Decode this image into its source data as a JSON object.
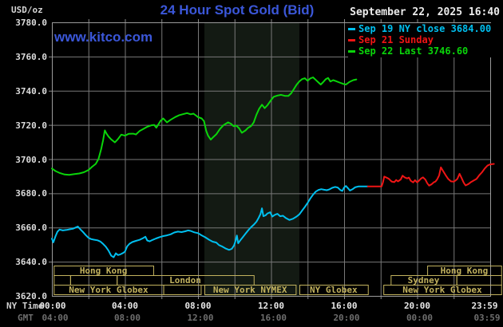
{
  "header": {
    "units_label": "USD/oz",
    "title": "24 Hour Spot Gold (Bid)",
    "datetime": "September 22, 2025 16:40",
    "watermark": "www.kitco.com"
  },
  "legend": {
    "items": [
      {
        "label": "Sep 19 NY close 3684.00",
        "color": "#00bfef"
      },
      {
        "label": "Sep 21 Sunday",
        "color": "#ef1515"
      },
      {
        "label": "Sep 22 Last 3746.60",
        "color": "#0ad50a"
      }
    ]
  },
  "axes": {
    "ny_row_label": "NY Time",
    "gmt_row_label": "GMT",
    "x_hours": [
      0,
      4,
      8,
      12,
      16,
      20,
      24
    ],
    "x_ny_labels": [
      "00:00",
      "04:00",
      "08:00",
      "12:00",
      "16:00",
      "20:00",
      "23:59"
    ],
    "x_gmt_labels": [
      "04:00",
      "08:00",
      "12:00",
      "16:00",
      "20:00",
      "00:00",
      "03:59"
    ],
    "y_tick_labels": [
      "3780.0",
      "3760.0",
      "3740.0",
      "3720.0",
      "3700.0",
      "3680.0",
      "3660.0",
      "3640.0",
      "3620.0"
    ],
    "y_tick_values": [
      3780,
      3760,
      3740,
      3720,
      3700,
      3680,
      3660,
      3640,
      3620
    ]
  },
  "colors": {
    "background": "#000000",
    "grid": "#787878",
    "border": "#9b9b9b",
    "tick": "#8a8a8a",
    "shade": "#131a13",
    "session": "#c2b25e",
    "title_blue": "#3b57d9"
  },
  "sessions": {
    "rows": [
      {
        "boxes": [
          {
            "label": "Hong Kong",
            "start": 0.1,
            "end": 5.55
          },
          {
            "label": "Hong Kong",
            "start": 20.55,
            "end": 24.6
          }
        ]
      },
      {
        "boxes": [
          {
            "label": "",
            "start": 0.1,
            "end": 1.0
          },
          {
            "label": "",
            "start": 1.0,
            "end": 3.55
          },
          {
            "label": "London",
            "start": 3.55,
            "end": 11.05
          },
          {
            "label": "Sydney",
            "start": 18.55,
            "end": 22.15
          },
          {
            "label": "",
            "start": 22.15,
            "end": 24.6
          }
        ]
      },
      {
        "boxes": [
          {
            "label": "New York Globex",
            "start": 0.1,
            "end": 6.1
          },
          {
            "label": "",
            "start": 6.1,
            "end": 8.15
          },
          {
            "label": "New York NYMEX",
            "start": 8.35,
            "end": 13.35
          },
          {
            "label": "NY Globex",
            "start": 13.55,
            "end": 17.3
          },
          {
            "label": "New York Globex",
            "start": 18.15,
            "end": 24.6
          }
        ]
      }
    ]
  },
  "chart_data": {
    "type": "line",
    "title": "24 Hour Spot Gold (Bid)",
    "xlabel": "NY Time (hours)",
    "ylabel": "USD/oz",
    "x_range_hours": [
      0,
      24
    ],
    "ylim": [
      3620,
      3780
    ],
    "y_tick_step": 20,
    "grid": true,
    "legend_position": "top-right",
    "shaded_band_hours": [
      8.35,
      13.55
    ],
    "series": [
      {
        "name": "Sep 19 NY close 3684.00",
        "color": "#00bfef",
        "points": [
          [
            0,
            3653.5
          ],
          [
            0.08,
            3651.3
          ],
          [
            0.2,
            3655
          ],
          [
            0.3,
            3657.5
          ],
          [
            0.42,
            3658.8
          ],
          [
            0.6,
            3658.3
          ],
          [
            0.8,
            3658.6
          ],
          [
            1,
            3659
          ],
          [
            1.15,
            3659.3
          ],
          [
            1.3,
            3660
          ],
          [
            1.42,
            3660.6
          ],
          [
            1.55,
            3659
          ],
          [
            1.7,
            3657.4
          ],
          [
            1.85,
            3655.6
          ],
          [
            2,
            3654
          ],
          [
            2.15,
            3653.2
          ],
          [
            2.3,
            3652.9
          ],
          [
            2.5,
            3652.5
          ],
          [
            2.65,
            3651.8
          ],
          [
            2.8,
            3650.4
          ],
          [
            2.95,
            3648.8
          ],
          [
            3.1,
            3646.5
          ],
          [
            3.25,
            3643.5
          ],
          [
            3.38,
            3642.6
          ],
          [
            3.5,
            3644.9
          ],
          [
            3.62,
            3643.9
          ],
          [
            3.75,
            3644.3
          ],
          [
            3.9,
            3645.1
          ],
          [
            4,
            3645.9
          ],
          [
            4.12,
            3648.9
          ],
          [
            4.25,
            3650.5
          ],
          [
            4.4,
            3651.5
          ],
          [
            4.6,
            3652.2
          ],
          [
            4.8,
            3652.8
          ],
          [
            5,
            3653.8
          ],
          [
            5.12,
            3654.6
          ],
          [
            5.22,
            3652.4
          ],
          [
            5.35,
            3651.9
          ],
          [
            5.5,
            3652.7
          ],
          [
            5.7,
            3653.6
          ],
          [
            5.9,
            3654.4
          ],
          [
            6.1,
            3655
          ],
          [
            6.3,
            3655.4
          ],
          [
            6.5,
            3656
          ],
          [
            6.7,
            3657.1
          ],
          [
            6.9,
            3657.6
          ],
          [
            7.1,
            3657.3
          ],
          [
            7.3,
            3657.8
          ],
          [
            7.45,
            3658.3
          ],
          [
            7.6,
            3658
          ],
          [
            7.8,
            3657.2
          ],
          [
            8,
            3656.7
          ],
          [
            8.2,
            3655.4
          ],
          [
            8.4,
            3654.3
          ],
          [
            8.6,
            3652.9
          ],
          [
            8.8,
            3651.7
          ],
          [
            9,
            3651.2
          ],
          [
            9.15,
            3649.7
          ],
          [
            9.3,
            3649
          ],
          [
            9.5,
            3647.8
          ],
          [
            9.7,
            3646.9
          ],
          [
            9.85,
            3647.5
          ],
          [
            9.97,
            3649.5
          ],
          [
            10.05,
            3652
          ],
          [
            10.13,
            3655.3
          ],
          [
            10.2,
            3650.8
          ],
          [
            10.3,
            3652.3
          ],
          [
            10.45,
            3654.3
          ],
          [
            10.6,
            3656.4
          ],
          [
            10.75,
            3658.4
          ],
          [
            10.9,
            3660.1
          ],
          [
            11.05,
            3661.6
          ],
          [
            11.2,
            3663.4
          ],
          [
            11.32,
            3665.6
          ],
          [
            11.42,
            3667.8
          ],
          [
            11.5,
            3671.2
          ],
          [
            11.58,
            3666.6
          ],
          [
            11.7,
            3667.1
          ],
          [
            11.8,
            3668.2
          ],
          [
            11.95,
            3668.9
          ],
          [
            12.07,
            3666.4
          ],
          [
            12.2,
            3667.4
          ],
          [
            12.35,
            3668
          ],
          [
            12.5,
            3666.6
          ],
          [
            12.65,
            3666.9
          ],
          [
            12.8,
            3665.6
          ],
          [
            13,
            3664.4
          ],
          [
            13.2,
            3665.1
          ],
          [
            13.4,
            3666.4
          ],
          [
            13.55,
            3667.7
          ],
          [
            13.7,
            3669.9
          ],
          [
            13.85,
            3672
          ],
          [
            14,
            3674.4
          ],
          [
            14.15,
            3677
          ],
          [
            14.3,
            3679.2
          ],
          [
            14.45,
            3681
          ],
          [
            14.6,
            3682
          ],
          [
            14.75,
            3682.4
          ],
          [
            14.9,
            3682.1
          ],
          [
            15.05,
            3681.8
          ],
          [
            15.2,
            3682.3
          ],
          [
            15.35,
            3683.2
          ],
          [
            15.5,
            3683.7
          ],
          [
            15.65,
            3683.4
          ],
          [
            15.8,
            3681.9
          ],
          [
            15.9,
            3681.4
          ],
          [
            16,
            3683.4
          ],
          [
            16.1,
            3684.3
          ],
          [
            16.22,
            3682.9
          ],
          [
            16.32,
            3681.6
          ],
          [
            16.45,
            3682.3
          ],
          [
            16.6,
            3683.5
          ],
          [
            16.78,
            3684
          ],
          [
            17.05,
            3684
          ],
          [
            17.3,
            3684
          ]
        ]
      },
      {
        "name": "Sep 21 Sunday",
        "color": "#ef1515",
        "points": [
          [
            17.3,
            3684
          ],
          [
            18.05,
            3684
          ],
          [
            18.12,
            3686.2
          ],
          [
            18.2,
            3689.8
          ],
          [
            18.32,
            3689.2
          ],
          [
            18.45,
            3688.5
          ],
          [
            18.6,
            3686.9
          ],
          [
            18.75,
            3686.5
          ],
          [
            18.85,
            3687.8
          ],
          [
            18.95,
            3687
          ],
          [
            19.1,
            3688.1
          ],
          [
            19.2,
            3690.3
          ],
          [
            19.32,
            3689.3
          ],
          [
            19.45,
            3688.7
          ],
          [
            19.55,
            3689.2
          ],
          [
            19.65,
            3687.3
          ],
          [
            19.78,
            3686.4
          ],
          [
            19.88,
            3687.7
          ],
          [
            20,
            3686.4
          ],
          [
            20.1,
            3687.4
          ],
          [
            20.22,
            3688.7
          ],
          [
            20.32,
            3689.3
          ],
          [
            20.45,
            3688
          ],
          [
            20.55,
            3685.9
          ],
          [
            20.65,
            3684.5
          ],
          [
            20.78,
            3685.2
          ],
          [
            20.9,
            3686.4
          ],
          [
            21,
            3686.9
          ],
          [
            21.1,
            3688.3
          ],
          [
            21.2,
            3690.5
          ],
          [
            21.3,
            3695.2
          ],
          [
            21.4,
            3693.4
          ],
          [
            21.55,
            3690.7
          ],
          [
            21.7,
            3688.4
          ],
          [
            21.85,
            3687
          ],
          [
            22,
            3686.8
          ],
          [
            22.1,
            3687.5
          ],
          [
            22.2,
            3688.4
          ],
          [
            22.32,
            3691.4
          ],
          [
            22.42,
            3689.2
          ],
          [
            22.55,
            3686.2
          ],
          [
            22.65,
            3684.6
          ],
          [
            22.8,
            3685.4
          ],
          [
            22.95,
            3686.6
          ],
          [
            23.1,
            3687.5
          ],
          [
            23.25,
            3688.4
          ],
          [
            23.4,
            3690.6
          ],
          [
            23.55,
            3692.3
          ],
          [
            23.7,
            3694.5
          ],
          [
            23.85,
            3696.2
          ],
          [
            24,
            3696.9
          ],
          [
            24.2,
            3697.2
          ]
        ]
      },
      {
        "name": "Sep 22 Last 3746.60",
        "color": "#0ad50a",
        "points": [
          [
            0,
            3694.5
          ],
          [
            0.2,
            3693
          ],
          [
            0.45,
            3691.8
          ],
          [
            0.7,
            3691
          ],
          [
            0.95,
            3690.8
          ],
          [
            1.2,
            3691.2
          ],
          [
            1.5,
            3691.6
          ],
          [
            1.75,
            3692.3
          ],
          [
            2,
            3693.6
          ],
          [
            2.2,
            3695.5
          ],
          [
            2.4,
            3697.2
          ],
          [
            2.55,
            3700
          ],
          [
            2.7,
            3706
          ],
          [
            2.8,
            3711
          ],
          [
            2.9,
            3716.8
          ],
          [
            3,
            3714.8
          ],
          [
            3.1,
            3713.2
          ],
          [
            3.25,
            3711.5
          ],
          [
            3.45,
            3709.8
          ],
          [
            3.6,
            3711.5
          ],
          [
            3.8,
            3714.3
          ],
          [
            4,
            3713.7
          ],
          [
            4.2,
            3714.8
          ],
          [
            4.45,
            3714.9
          ],
          [
            4.6,
            3714.4
          ],
          [
            4.8,
            3716.4
          ],
          [
            5,
            3717.6
          ],
          [
            5.2,
            3718.8
          ],
          [
            5.45,
            3719.8
          ],
          [
            5.6,
            3720
          ],
          [
            5.72,
            3718.4
          ],
          [
            5.95,
            3722.4
          ],
          [
            6.1,
            3723.8
          ],
          [
            6.3,
            3721.5
          ],
          [
            6.5,
            3723
          ],
          [
            6.75,
            3724.6
          ],
          [
            6.95,
            3725.6
          ],
          [
            7.15,
            3726.2
          ],
          [
            7.4,
            3726.9
          ],
          [
            7.6,
            3726.2
          ],
          [
            7.75,
            3726.6
          ],
          [
            7.9,
            3725.4
          ],
          [
            8,
            3724.6
          ],
          [
            8.2,
            3723.8
          ],
          [
            8.33,
            3722.2
          ],
          [
            8.45,
            3716.5
          ],
          [
            8.55,
            3713.7
          ],
          [
            8.7,
            3711.4
          ],
          [
            8.85,
            3713
          ],
          [
            9,
            3714.5
          ],
          [
            9.2,
            3717.6
          ],
          [
            9.4,
            3719.9
          ],
          [
            9.65,
            3721.5
          ],
          [
            9.8,
            3720.7
          ],
          [
            9.95,
            3719.2
          ],
          [
            10.1,
            3719.6
          ],
          [
            10.25,
            3718
          ],
          [
            10.4,
            3715.4
          ],
          [
            10.6,
            3716.8
          ],
          [
            10.75,
            3718.4
          ],
          [
            10.9,
            3719.2
          ],
          [
            11.05,
            3721.5
          ],
          [
            11.2,
            3726
          ],
          [
            11.35,
            3729.5
          ],
          [
            11.5,
            3731.8
          ],
          [
            11.65,
            3729.8
          ],
          [
            11.8,
            3731.5
          ],
          [
            12,
            3734.5
          ],
          [
            12.15,
            3736.5
          ],
          [
            12.35,
            3737.2
          ],
          [
            12.55,
            3737.6
          ],
          [
            12.75,
            3737
          ],
          [
            12.95,
            3737
          ],
          [
            13.1,
            3738.5
          ],
          [
            13.25,
            3741
          ],
          [
            13.4,
            3743.5
          ],
          [
            13.55,
            3745.5
          ],
          [
            13.7,
            3746.8
          ],
          [
            13.85,
            3747.3
          ],
          [
            14,
            3745.8
          ],
          [
            14.15,
            3747.2
          ],
          [
            14.3,
            3747.8
          ],
          [
            14.45,
            3746.3
          ],
          [
            14.6,
            3744.8
          ],
          [
            14.72,
            3743.6
          ],
          [
            14.85,
            3745
          ],
          [
            15,
            3746.8
          ],
          [
            15.12,
            3747.5
          ],
          [
            15.25,
            3745.4
          ],
          [
            15.4,
            3746.2
          ],
          [
            15.55,
            3745.6
          ],
          [
            15.75,
            3744.8
          ],
          [
            15.95,
            3744
          ],
          [
            16.1,
            3743.6
          ],
          [
            16.3,
            3745.2
          ],
          [
            16.5,
            3746.2
          ],
          [
            16.67,
            3746.6
          ]
        ]
      }
    ]
  }
}
